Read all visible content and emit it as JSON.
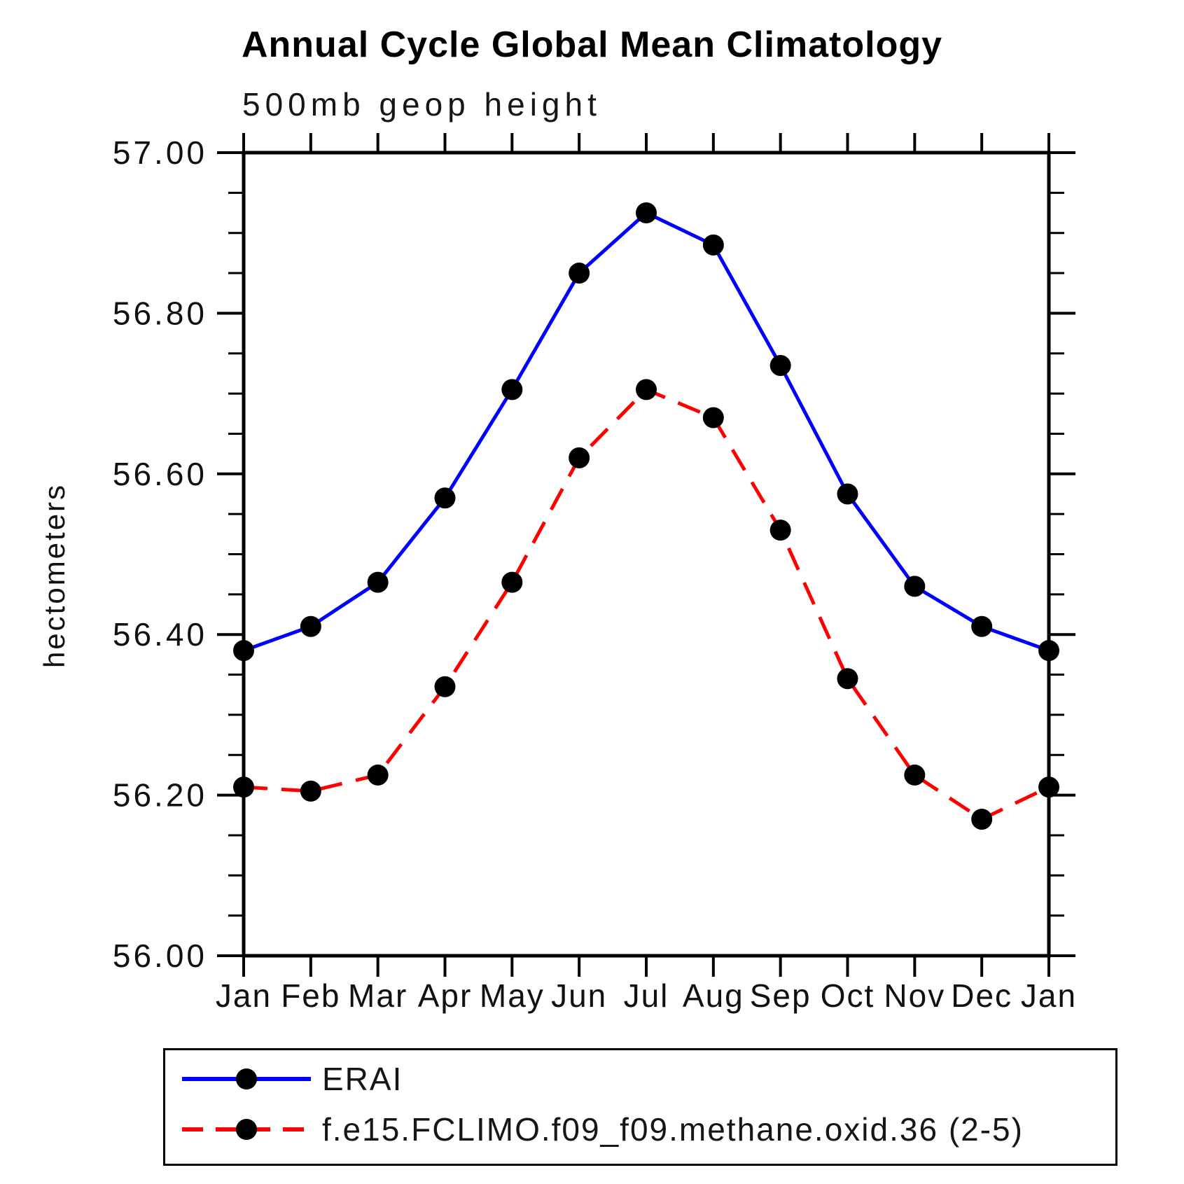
{
  "page": {
    "background": "#ffffff"
  },
  "chart_data": {
    "type": "line",
    "title": "Annual Cycle Global Mean Climatology",
    "subtitle": "500mb geop height",
    "ylabel": "hectometers",
    "xlabel": "",
    "categories": [
      "Jan",
      "Feb",
      "Mar",
      "Apr",
      "May",
      "Jun",
      "Jul",
      "Aug",
      "Sep",
      "Oct",
      "Nov",
      "Dec",
      "Jan"
    ],
    "ylim": [
      56.0,
      57.0
    ],
    "ytick_major": 0.2,
    "ytick_minor": 0.05,
    "ytick_decimals": 2,
    "grid": false,
    "legend_position": "bottom",
    "axis_color": "#000000",
    "marker_color": "#000000",
    "series": [
      {
        "name": "ERAI",
        "color": "#0000ff",
        "line_style": "solid",
        "marker": "circle",
        "values": [
          56.38,
          56.41,
          56.465,
          56.57,
          56.705,
          56.85,
          56.925,
          56.885,
          56.735,
          56.575,
          56.46,
          56.41,
          56.38
        ]
      },
      {
        "name": "f.e15.FCLIMO.f09_f09.methane.oxid.36 (2-5)",
        "color": "#ff0000",
        "line_style": "dashed",
        "marker": "circle",
        "values": [
          56.21,
          56.205,
          56.225,
          56.335,
          56.465,
          56.62,
          56.705,
          56.67,
          56.53,
          56.345,
          56.225,
          56.17,
          56.21
        ]
      }
    ]
  }
}
